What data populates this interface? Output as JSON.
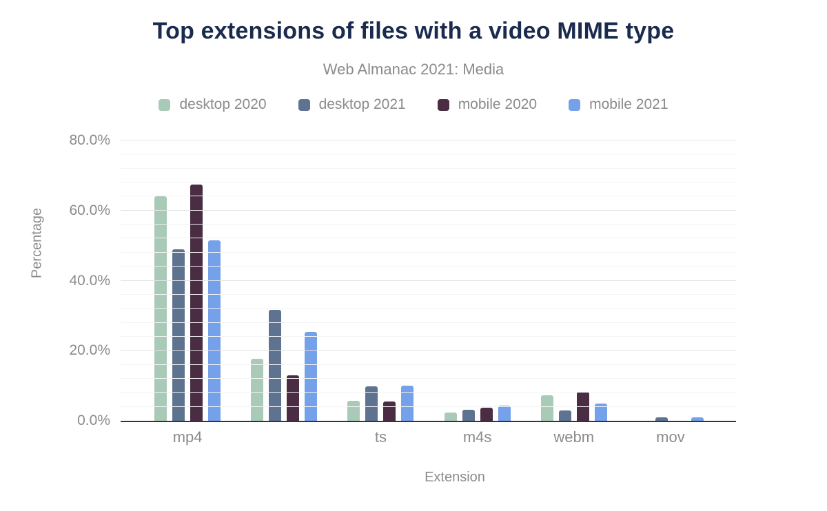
{
  "chart_data": {
    "type": "bar",
    "title": "Top extensions of files with a video MIME type",
    "subtitle": "Web Almanac 2021: Media",
    "xlabel": "Extension",
    "ylabel": "Percentage",
    "ylim": [
      0,
      80
    ],
    "grid": "horizontal-only",
    "minor_gridline_step": 4,
    "legend_position": "top",
    "yticks": [
      {
        "value": 0,
        "label": "0.0%"
      },
      {
        "value": 20,
        "label": "20.0%"
      },
      {
        "value": 40,
        "label": "40.0%"
      },
      {
        "value": 60,
        "label": "60.0%"
      },
      {
        "value": 80,
        "label": "80.0%"
      }
    ],
    "categories": [
      "mp4",
      "",
      "ts",
      "m4s",
      "webm",
      "mov"
    ],
    "series": [
      {
        "name": "desktop 2020",
        "color": "#a9cab7",
        "values": [
          64.0,
          17.6,
          5.8,
          2.3,
          7.2,
          0
        ]
      },
      {
        "name": "desktop 2021",
        "color": "#5e7390",
        "values": [
          49.0,
          31.7,
          9.9,
          3.2,
          3.0,
          0.9
        ]
      },
      {
        "name": "mobile 2020",
        "color": "#4a2d43",
        "values": [
          67.5,
          12.9,
          5.5,
          3.7,
          8.3,
          0
        ]
      },
      {
        "name": "mobile 2021",
        "color": "#74a1ea",
        "values": [
          51.6,
          25.4,
          10.1,
          4.4,
          5.0,
          0.9
        ]
      }
    ],
    "axis_line_color": "#35323a",
    "title_color": "#1a2b4e",
    "text_color": "#8b8b8b"
  }
}
